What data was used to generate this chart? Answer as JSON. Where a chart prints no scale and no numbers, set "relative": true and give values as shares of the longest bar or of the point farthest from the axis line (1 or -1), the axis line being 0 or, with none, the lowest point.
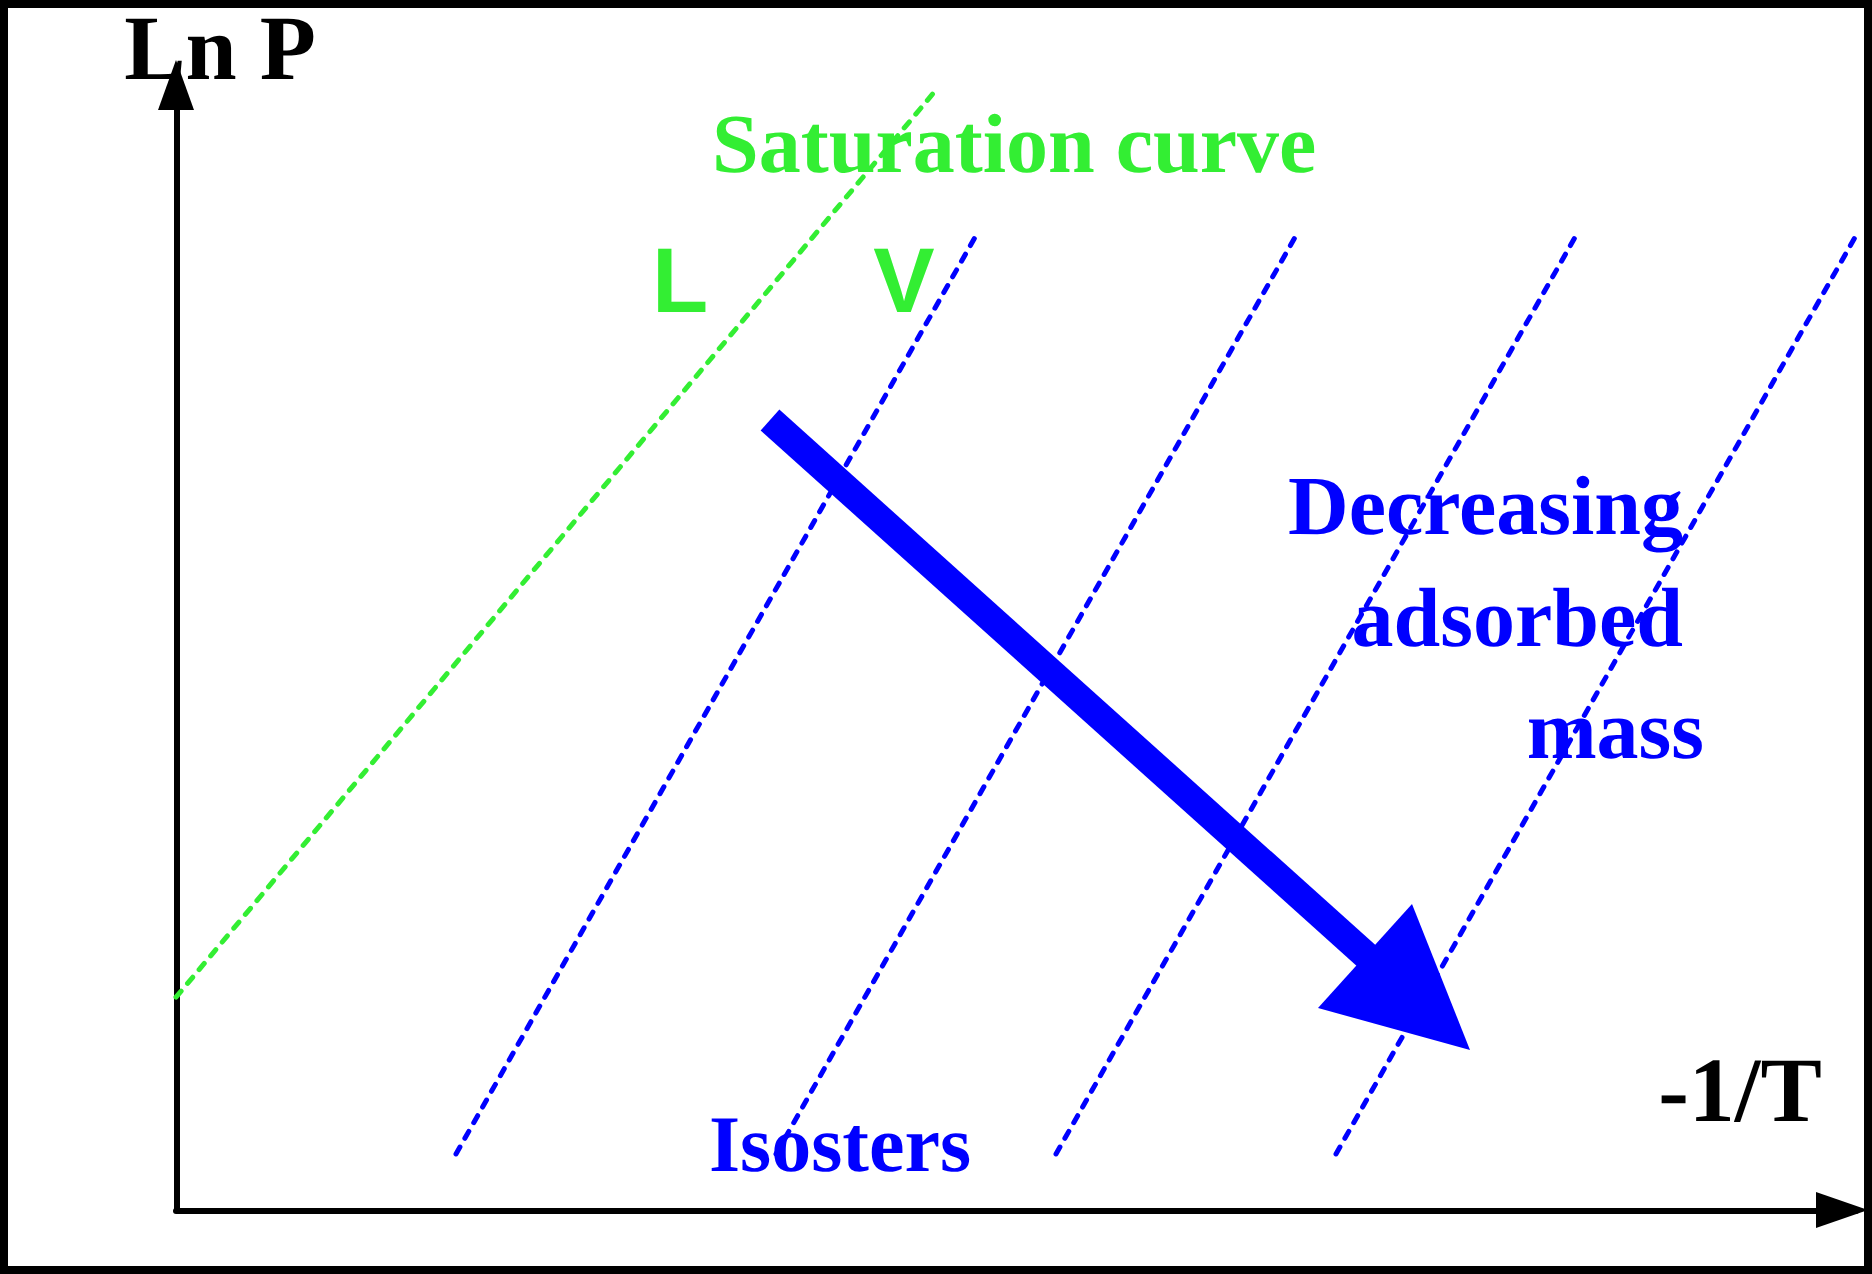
{
  "chart_data": {
    "type": "line",
    "relative": true,
    "xlabel": "-1/T",
    "ylabel": "Ln P",
    "annotations": [
      "L",
      "V",
      "Decreasing adsorbed mass",
      "Isosters"
    ],
    "categories": [
      null,
      null,
      null,
      null,
      null,
      null,
      null,
      null,
      null,
      null,
      null,
      null,
      null,
      null,
      null,
      null,
      null,
      null,
      null,
      null,
      null,
      null,
      null,
      null,
      null,
      null,
      null,
      null,
      null,
      null,
      null,
      null,
      null,
      null,
      null,
      null,
      null,
      null,
      null,
      null,
      null,
      null,
      null
    ],
    "series": [
      {
        "name": "Saturation curve",
        "color": "#33ee33",
        "values": [
          0.19,
          null,
          null,
          null,
          null,
          null,
          null,
          null,
          null,
          null,
          null,
          null,
          null,
          null,
          null,
          null,
          null,
          null,
          null,
          1,
          null,
          null,
          null,
          null,
          null,
          null,
          null,
          null,
          null,
          null,
          null,
          null,
          null,
          null,
          null,
          null,
          null,
          null,
          null,
          null,
          null,
          null,
          null
        ]
      },
      {
        "color": "#0000ff",
        "values": [
          null,
          null,
          null,
          null,
          null,
          null,
          null,
          0.05,
          null,
          null,
          null,
          null,
          null,
          null,
          null,
          null,
          null,
          null,
          null,
          null,
          0.87,
          null,
          null,
          null,
          null,
          null,
          null,
          null,
          null,
          null,
          null,
          null,
          null,
          null,
          null,
          null,
          null,
          null,
          null,
          null,
          null,
          null,
          null
        ]
      },
      {
        "color": "#0000ff",
        "values": [
          null,
          null,
          null,
          null,
          null,
          null,
          null,
          null,
          null,
          null,
          null,
          null,
          null,
          null,
          null,
          0.05,
          null,
          null,
          null,
          null,
          null,
          null,
          null,
          null,
          null,
          null,
          null,
          null,
          0.87,
          null,
          null,
          null,
          null,
          null,
          null,
          null,
          null,
          null,
          null,
          null,
          null,
          null,
          null
        ]
      },
      {
        "color": "#0000ff",
        "values": [
          null,
          null,
          null,
          null,
          null,
          null,
          null,
          null,
          null,
          null,
          null,
          null,
          null,
          null,
          null,
          null,
          null,
          null,
          null,
          null,
          null,
          null,
          0.05,
          null,
          null,
          null,
          null,
          null,
          null,
          null,
          null,
          null,
          null,
          null,
          null,
          0.87,
          null,
          null,
          null,
          null,
          null,
          null,
          null
        ]
      },
      {
        "color": "#0000ff",
        "values": [
          null,
          null,
          null,
          null,
          null,
          null,
          null,
          null,
          null,
          null,
          null,
          null,
          null,
          null,
          null,
          null,
          null,
          null,
          null,
          null,
          null,
          null,
          null,
          null,
          null,
          null,
          null,
          null,
          null,
          0.05,
          null,
          null,
          null,
          null,
          null,
          null,
          null,
          null,
          null,
          null,
          null,
          null,
          0.87
        ]
      }
    ],
    "legend": false,
    "grid": false,
    "marker": "none",
    "line_style": "dashed"
  }
}
